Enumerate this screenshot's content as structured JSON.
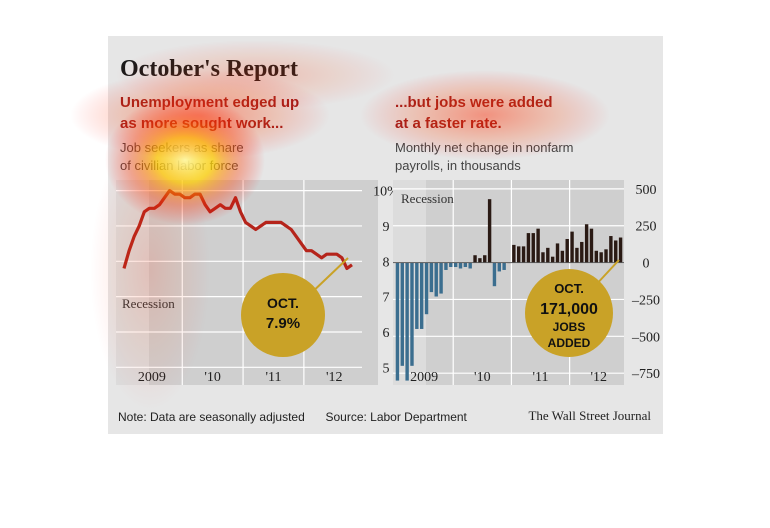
{
  "title": "October's Report",
  "left": {
    "headline_1": "Unemployment edged up",
    "headline_2": "as more sought work...",
    "subtitle_1": "Job seekers as share",
    "subtitle_2": "of civilian labor force",
    "recession_label": "Recession",
    "badge_1": "OCT.",
    "badge_2": "7.9%"
  },
  "right": {
    "headline_1": "...but jobs were added",
    "headline_2": "at a faster rate.",
    "subtitle_1": "Monthly net change in nonfarm",
    "subtitle_2": "payrolls, in thousands",
    "recession_label": "Recession",
    "badge_1": "OCT.",
    "badge_2": "171,000",
    "badge_3": "JOBS",
    "badge_4": "ADDED"
  },
  "footer": {
    "note": "Note: Data are seasonally adjusted",
    "source": "Source: Labor Department",
    "credit": "The Wall Street Journal"
  },
  "colors": {
    "line": "#b5241b",
    "bar_positive": "#2a1a14",
    "bar_negative": "#3b6e8f",
    "badge": "#c9a227",
    "recession": "#d8d8d8",
    "plot_bg": "#cfcfcf"
  },
  "chart_data": [
    {
      "type": "line",
      "title": "Unemployment edged up as more sought work...",
      "ylabel": "Job seekers as share of civilian labor force",
      "x_tick_labels": [
        "2009",
        "'10",
        "'11",
        "'12"
      ],
      "y_tick_labels": [
        "10%",
        "9",
        "8",
        "7",
        "6",
        "5"
      ],
      "ylim": [
        4.5,
        10.3
      ],
      "grid": true,
      "recession_shading": "Jan 2008 - Jun 2009",
      "series": [
        {
          "values": [
            7.8,
            8.3,
            8.7,
            9.0,
            9.4,
            9.5,
            9.5,
            9.6,
            9.8,
            10.0,
            9.9,
            9.9,
            9.8,
            9.8,
            9.9,
            9.9,
            9.6,
            9.4,
            9.5,
            9.6,
            9.5,
            9.5,
            9.8,
            9.4,
            9.1,
            9.0,
            8.9,
            9.0,
            9.1,
            9.1,
            9.1,
            9.1,
            9.0,
            8.9,
            8.7,
            8.5,
            8.3,
            8.3,
            8.2,
            8.1,
            8.2,
            8.2,
            8.2,
            8.1,
            7.8,
            7.9
          ]
        }
      ],
      "annotation": "OCT. 7.9%"
    },
    {
      "type": "bar",
      "title": "...but jobs were added at a faster rate.",
      "ylabel": "Monthly net change in nonfarm payrolls, in thousands",
      "x_tick_labels": [
        "2009",
        "'10",
        "'11",
        "'12"
      ],
      "y_tick_labels": [
        "500",
        "250",
        "0",
        "–250",
        "–500",
        "–750"
      ],
      "ylim": [
        -830,
        560
      ],
      "grid": true,
      "recession_shading": "Jan 2008 - Jun 2009",
      "series": [
        {
          "values": [
            -800,
            -700,
            -800,
            -700,
            -450,
            -450,
            -350,
            -200,
            -230,
            -210,
            -50,
            -30,
            -30,
            -40,
            -30,
            -40,
            50,
            30,
            50,
            430,
            -160,
            -60,
            -50,
            0,
            120,
            110,
            110,
            200,
            200,
            230,
            70,
            100,
            40,
            130,
            80,
            160,
            210,
            100,
            140,
            260,
            230,
            80,
            70,
            90,
            180,
            150,
            170
          ]
        }
      ],
      "annotation": "OCT. 171,000 JOBS ADDED"
    }
  ]
}
